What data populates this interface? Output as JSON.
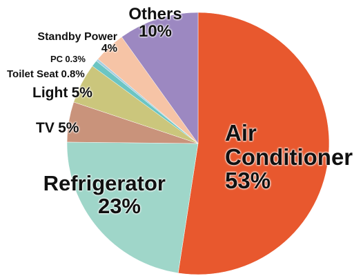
{
  "chart_data": {
    "type": "pie",
    "categories": [
      "Air Conditioner",
      "Refrigerator",
      "TV",
      "Light",
      "Toilet Seat",
      "PC",
      "Standby Power",
      "Others"
    ],
    "values": [
      53,
      23,
      5,
      5,
      0.8,
      0.3,
      4,
      10
    ],
    "value_labels": [
      "53%",
      "23%",
      "5%",
      "5%",
      "0.8%",
      "0.3%",
      "4%",
      "10%"
    ],
    "colors": [
      "#e8582e",
      "#9fd6c9",
      "#c9937b",
      "#cbc67c",
      "#6cc5c3",
      "#a7cfe0",
      "#f6c4a6",
      "#9c88c1"
    ]
  }
}
